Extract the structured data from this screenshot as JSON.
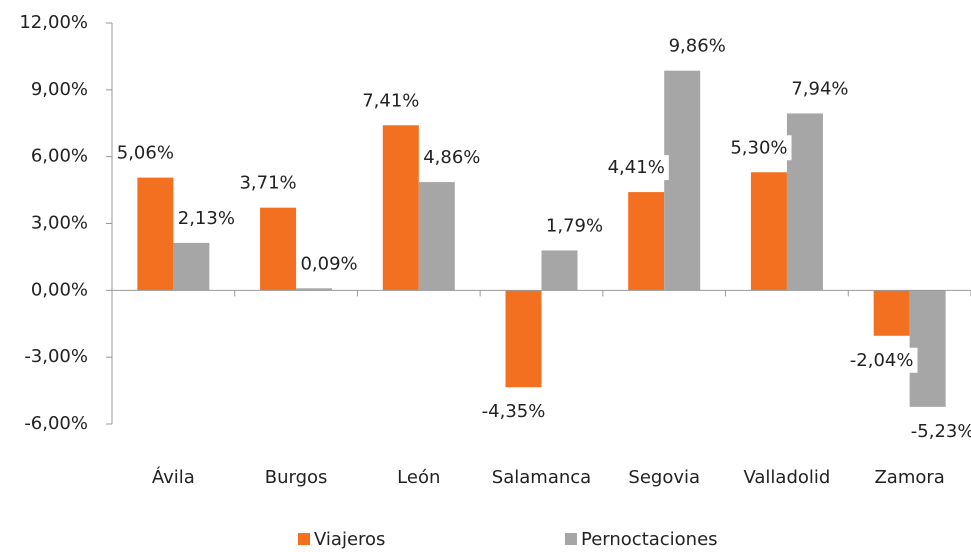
{
  "chart_data": {
    "type": "bar",
    "categories": [
      "Ávila",
      "Burgos",
      "León",
      "Salamanca",
      "Segovia",
      "Valladolid",
      "Zamora"
    ],
    "series": [
      {
        "name": "Viajeros",
        "color": "#f37021",
        "values": [
          5.06,
          3.71,
          7.41,
          -4.35,
          4.41,
          5.3,
          -2.04
        ],
        "value_labels": [
          "5,06%",
          "3,71%",
          "7,41%",
          "-4,35%",
          "4,41%",
          "5,30%",
          "-2,04%"
        ]
      },
      {
        "name": "Pernoctaciones",
        "color": "#a6a6a6",
        "values": [
          2.13,
          0.09,
          4.86,
          1.79,
          9.86,
          7.94,
          -5.23
        ],
        "value_labels": [
          "2,13%",
          "0,09%",
          "4,86%",
          "1,79%",
          "9,86%",
          "7,94%",
          "-5,23%"
        ]
      }
    ],
    "ylim": [
      -6,
      12
    ],
    "yticks": [
      {
        "value": -6,
        "label": "-6,00%"
      },
      {
        "value": -3,
        "label": "-3,00%"
      },
      {
        "value": 0,
        "label": "0,00%"
      },
      {
        "value": 3,
        "label": "3,00%"
      },
      {
        "value": 6,
        "label": "6,00%"
      },
      {
        "value": 9,
        "label": "9,00%"
      },
      {
        "value": 12,
        "label": "12,00%"
      }
    ],
    "legend": "bottom"
  }
}
